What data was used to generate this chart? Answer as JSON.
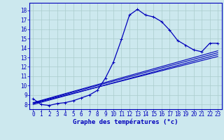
{
  "title": "Graphe des températures (°c)",
  "background_color": "#cce8ee",
  "grid_color": "#aacccc",
  "line_color": "#0000bb",
  "spine_color": "#0000bb",
  "xlim": [
    -0.5,
    23.5
  ],
  "ylim": [
    7.5,
    18.8
  ],
  "xticks": [
    0,
    1,
    2,
    3,
    4,
    5,
    6,
    7,
    8,
    9,
    10,
    11,
    12,
    13,
    14,
    15,
    16,
    17,
    18,
    19,
    20,
    21,
    22,
    23
  ],
  "yticks": [
    8,
    9,
    10,
    11,
    12,
    13,
    14,
    15,
    16,
    17,
    18
  ],
  "main_series": {
    "x": [
      0,
      1,
      2,
      3,
      4,
      5,
      6,
      7,
      8,
      9,
      10,
      11,
      12,
      13,
      14,
      15,
      16,
      17,
      18,
      19,
      20,
      21,
      22,
      23
    ],
    "y": [
      8.6,
      8.0,
      7.9,
      8.1,
      8.2,
      8.4,
      8.7,
      9.0,
      9.5,
      10.8,
      12.5,
      14.9,
      17.5,
      18.1,
      17.5,
      17.3,
      16.8,
      15.9,
      14.8,
      14.3,
      13.8,
      13.6,
      14.5,
      14.5
    ]
  },
  "linear_series": [
    {
      "x": [
        0,
        23
      ],
      "y": [
        8.0,
        13.3
      ]
    },
    {
      "x": [
        0,
        23
      ],
      "y": [
        8.1,
        13.1
      ]
    },
    {
      "x": [
        0,
        23
      ],
      "y": [
        8.15,
        13.5
      ]
    },
    {
      "x": [
        0,
        23
      ],
      "y": [
        8.2,
        13.7
      ]
    }
  ],
  "tick_fontsize": 5.5,
  "label_fontsize": 6.5
}
